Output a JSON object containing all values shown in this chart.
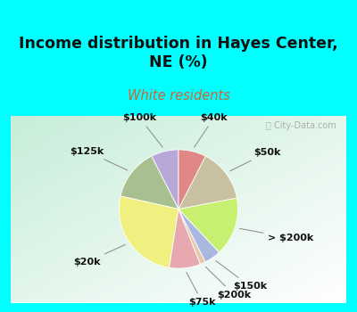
{
  "title": "Income distribution in Hayes Center,\nNE (%)",
  "subtitle": "White residents",
  "title_color": "#111111",
  "subtitle_color": "#cc6633",
  "cyan_border": "#00ffff",
  "labels": [
    "$100k",
    "$125k",
    "$20k",
    "$75k",
    "$200k",
    "$150k",
    "> $200k",
    "$50k",
    "$40k"
  ],
  "values": [
    7.5,
    14.0,
    26.0,
    8.5,
    1.5,
    4.5,
    16.0,
    14.5,
    7.5
  ],
  "colors": [
    "#b8a8d8",
    "#a8c090",
    "#f0f080",
    "#e8a8b0",
    "#e8c8a8",
    "#a8b8e0",
    "#c8f070",
    "#c8c0a0",
    "#e08888"
  ],
  "startangle": 90,
  "label_fontsize": 8,
  "watermark": "ⓘ City-Data.com",
  "border_width": 8
}
